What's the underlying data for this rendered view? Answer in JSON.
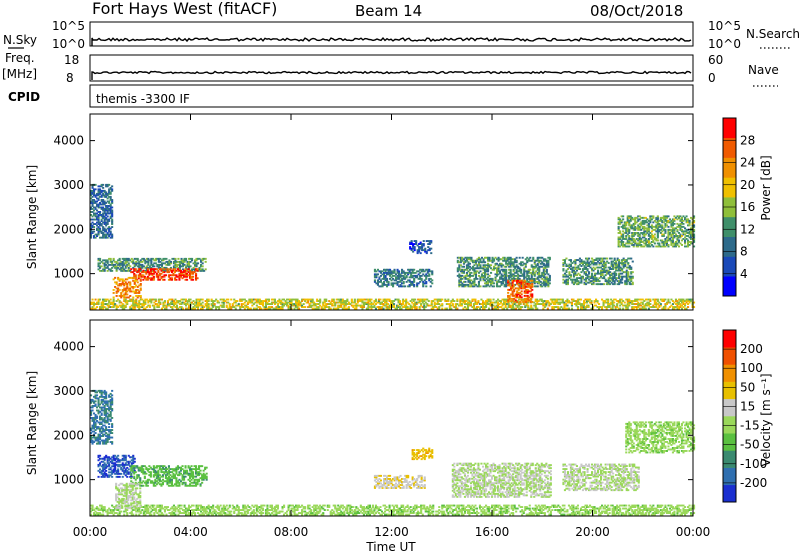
{
  "header": {
    "title": "Fort Hays West (fitACF)",
    "beam": "Beam 14",
    "date": "08/Oct/2018"
  },
  "strips": {
    "nsky_label": "N.Sky",
    "nsky_ticks": [
      "10^5",
      "10^0"
    ],
    "nsearch_label": "N.Search",
    "nsearch_ticks": [
      "10^5",
      "10^0"
    ],
    "freq_label": "Freq.",
    "freq_unit": "[MHz]",
    "freq_ticks": [
      "18",
      "8"
    ],
    "nave_label": "Nave",
    "nave_ticks": [
      "60",
      "0"
    ],
    "cpid_label": "CPID",
    "cpid_value": "themis -3300 IF"
  },
  "colors": {
    "power_scale": [
      "#0000ff",
      "#1a49b8",
      "#2d6a8a",
      "#3f8f6a",
      "#8fbf3a",
      "#f0c000",
      "#f09000",
      "#f05a00",
      "#ff0000"
    ],
    "velocity_scale": [
      "#1a2fd0",
      "#2f6fb0",
      "#3a8a70",
      "#5ac040",
      "#9ad85a",
      "#c8c8c8",
      "#e8c000",
      "#f09000",
      "#f05000",
      "#ff0000"
    ],
    "ground_scatter": "#c0c0c0"
  },
  "chart_data": [
    {
      "type": "heatmap",
      "title": "",
      "xlabel": "Time UT",
      "ylabel": "Slant Range [km]",
      "x_ticks": [
        "00:00",
        "04:00",
        "08:00",
        "12:00",
        "16:00",
        "20:00",
        "00:00"
      ],
      "xlim": [
        0,
        24
      ],
      "y_ticks": [
        1000,
        2000,
        3000,
        4000
      ],
      "ylim": [
        180,
        4600
      ],
      "colorbar_label": "Power [dB]",
      "colorbar_ticks": [
        "28",
        "24",
        "20",
        "16",
        "12",
        "8",
        "4"
      ],
      "clim": [
        0,
        32
      ],
      "regions": [
        {
          "t0": 0.0,
          "t1": 24.0,
          "r0": 200,
          "r1": 420,
          "value": 18
        },
        {
          "t0": 0.3,
          "t1": 4.6,
          "r0": 1050,
          "r1": 1350,
          "value": 12
        },
        {
          "t0": 1.6,
          "t1": 4.3,
          "r0": 850,
          "r1": 1100,
          "value": 28
        },
        {
          "t0": 0.9,
          "t1": 2.0,
          "r0": 450,
          "r1": 900,
          "value": 24
        },
        {
          "t0": 0.0,
          "t1": 0.9,
          "r0": 1800,
          "r1": 3000,
          "value": 8
        },
        {
          "t0": 11.3,
          "t1": 13.6,
          "r0": 700,
          "r1": 1100,
          "value": 10
        },
        {
          "t0": 12.7,
          "t1": 13.6,
          "r0": 1450,
          "r1": 1750,
          "value": 6
        },
        {
          "t0": 14.6,
          "t1": 18.3,
          "r0": 700,
          "r1": 1350,
          "value": 12
        },
        {
          "t0": 16.6,
          "t1": 17.6,
          "r0": 350,
          "r1": 850,
          "value": 26
        },
        {
          "t0": 18.8,
          "t1": 21.6,
          "r0": 750,
          "r1": 1350,
          "value": 12
        },
        {
          "t0": 21.0,
          "t1": 24.0,
          "r0": 1600,
          "r1": 2300,
          "value": 14
        }
      ]
    },
    {
      "type": "heatmap",
      "title": "",
      "xlabel": "Time UT",
      "ylabel": "Slant Range [km]",
      "x_ticks": [
        "00:00",
        "04:00",
        "08:00",
        "12:00",
        "16:00",
        "20:00",
        "00:00"
      ],
      "xlim": [
        0,
        24
      ],
      "y_ticks": [
        1000,
        2000,
        3000,
        4000
      ],
      "ylim": [
        180,
        4600
      ],
      "colorbar_label": "Velocity [m s⁻¹]",
      "colorbar_ticks": [
        "200",
        "100",
        "50",
        "15",
        "-15",
        "-50",
        "-100",
        "-200"
      ],
      "clim": [
        -250,
        250
      ],
      "regions": [
        {
          "t0": 0.0,
          "t1": 24.0,
          "r0": 200,
          "r1": 420,
          "value": -30
        },
        {
          "t0": 0.3,
          "t1": 1.8,
          "r0": 1050,
          "r1": 1550,
          "value": -200
        },
        {
          "t0": 1.6,
          "t1": 4.6,
          "r0": 850,
          "r1": 1300,
          "value": -80
        },
        {
          "t0": 1.0,
          "t1": 2.0,
          "r0": 350,
          "r1": 900,
          "value": 0
        },
        {
          "t0": 0.0,
          "t1": 0.9,
          "r0": 1800,
          "r1": 3000,
          "value": -150
        },
        {
          "t0": 11.3,
          "t1": 13.3,
          "r0": 800,
          "r1": 1100,
          "value": 40
        },
        {
          "t0": 12.8,
          "t1": 13.6,
          "r0": 1450,
          "r1": 1700,
          "value": 80
        },
        {
          "t0": 14.4,
          "t1": 18.3,
          "r0": 600,
          "r1": 1350,
          "value": 0
        },
        {
          "t0": 18.8,
          "t1": 21.8,
          "r0": 750,
          "r1": 1350,
          "value": 0
        },
        {
          "t0": 21.3,
          "t1": 24.0,
          "r0": 1600,
          "r1": 2300,
          "value": -30
        }
      ]
    }
  ]
}
